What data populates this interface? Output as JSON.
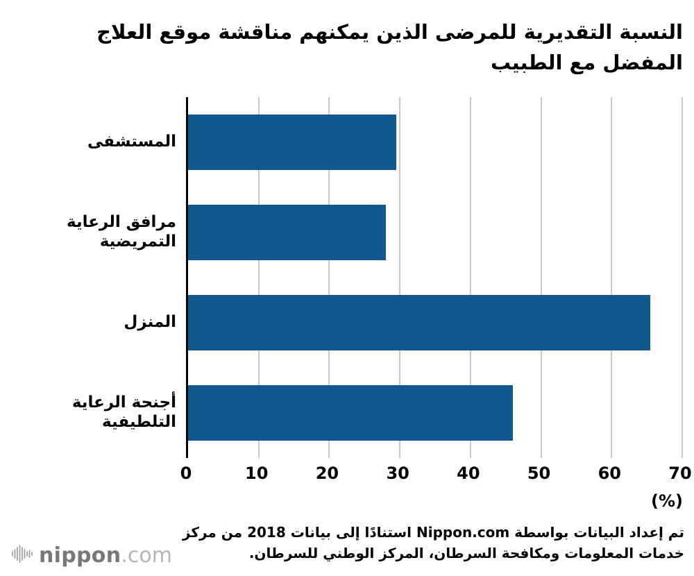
{
  "title": "النسبة التقديرية للمرضى الذين يمكنهم مناقشة موقع العلاج المفضل مع الطبيب",
  "chart_data": {
    "type": "bar",
    "orientation": "horizontal",
    "categories": [
      "المستشفى",
      "مرافق الرعاية التمريضية",
      "المنزل",
      "أجنحة الرعاية التلطيفية"
    ],
    "values": [
      29.5,
      28,
      65.5,
      46
    ],
    "xlim": [
      0,
      70
    ],
    "xticks": [
      0,
      10,
      20,
      30,
      40,
      50,
      60,
      70
    ],
    "xlabel": "(%)",
    "bar_color": "#11598f",
    "gridline_color": "#c9c9c9",
    "grid": true,
    "legend": "none"
  },
  "unit_label": "(%)",
  "source_note": "تم إعداد البيانات بواسطة Nippon.com استنادًا إلى بيانات 2018 من مركز خدمات المعلومات ومكافحة السرطان، المركز الوطني للسرطان.",
  "logo": {
    "name": "nippon",
    "suffix": ".com",
    "icon": "soundwave-icon"
  }
}
